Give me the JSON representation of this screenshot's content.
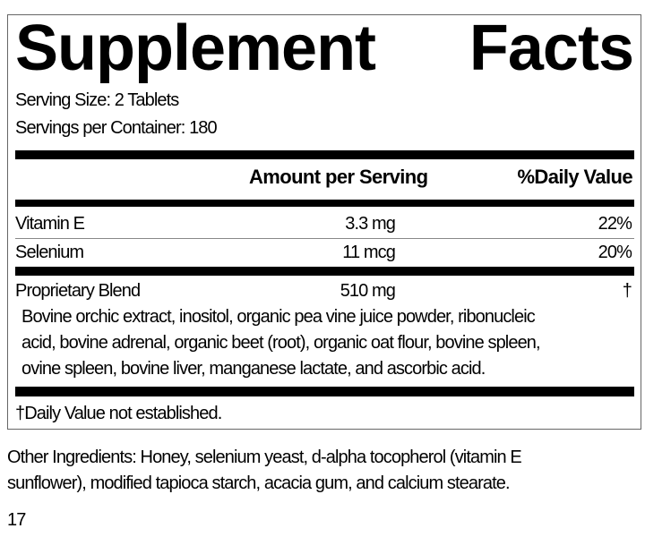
{
  "title_words": [
    "Supplement",
    "Facts"
  ],
  "serving_size": "Serving Size: 2 Tablets",
  "servings_per_container": "Servings per Container: 180",
  "headers": {
    "amount": "Amount per Serving",
    "daily_value": "%Daily Value"
  },
  "rows": [
    {
      "name": "Vitamin E",
      "amount": "3.3 mg",
      "dv": "22%"
    },
    {
      "name": "Selenium",
      "amount": "11 mcg",
      "dv": "20%"
    },
    {
      "name": "Proprietary Blend",
      "amount": "510 mg",
      "dv": "†"
    }
  ],
  "blend_ingredients": [
    "Bovine orchic extract, inositol, organic pea vine juice powder, ribonucleic",
    "acid, bovine adrenal, organic beet (root), organic oat flour, bovine spleen,",
    "ovine spleen, bovine liver, manganese lactate, and ascorbic acid."
  ],
  "footnote": "†Daily Value not established.",
  "other_ingredients": [
    "Other Ingredients: Honey, selenium yeast, d-alpha tocopherol (vitamin E",
    "sunflower), modified tapioca starch, acacia gum, and calcium stearate."
  ],
  "page_number": "17"
}
